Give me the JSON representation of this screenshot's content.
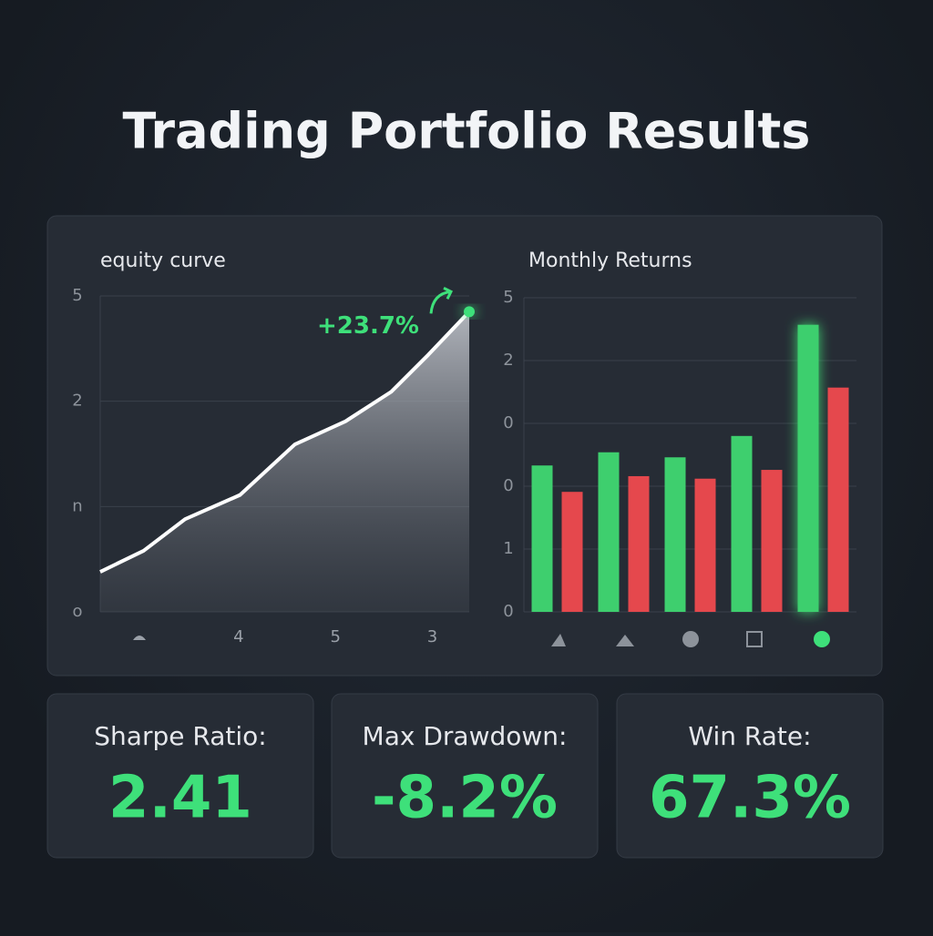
{
  "title": "Trading Portfolio Results",
  "chart_data": [
    {
      "type": "line",
      "title": "equity curve",
      "x": [
        0,
        0.94,
        1.84,
        3.03,
        4.22,
        5.32,
        6.31,
        7.11,
        8
      ],
      "values": [
        0.38,
        0.58,
        0.88,
        1.11,
        1.59,
        1.81,
        2.09,
        2.44,
        2.85
      ],
      "color": "#ffffff",
      "xlim": [
        0,
        8
      ],
      "ylim": [
        0,
        3
      ],
      "yticks": [
        {
          "value": 0,
          "label": "o"
        },
        {
          "value": 1,
          "label": "n"
        },
        2,
        {
          "value": 3,
          "label": "5"
        }
      ],
      "xticks": [
        {
          "value": 3,
          "label": "4"
        },
        {
          "value": 5.1,
          "label": "5"
        },
        {
          "value": 7.2,
          "label": "3"
        }
      ],
      "annotation": "+23.7%",
      "grid": true
    },
    {
      "type": "bar",
      "title": "Monthly Returns",
      "categories": [
        null,
        null,
        null,
        null,
        null
      ],
      "series": [
        {
          "color": "#3ecf6e",
          "values": [
            2.33,
            2.54,
            2.46,
            2.8,
            4.57
          ]
        },
        {
          "color": "#e5484d",
          "values": [
            1.91,
            2.16,
            2.12,
            2.26,
            3.57
          ]
        }
      ],
      "ylim": [
        0,
        5
      ],
      "yticks": [
        0,
        1,
        {
          "value": 2,
          "label": "0"
        },
        {
          "value": 3,
          "label": "0"
        },
        {
          "value": 4,
          "label": "2"
        },
        5
      ],
      "grid": true
    }
  ],
  "stats": [
    {
      "label": "Sharpe Ratio:",
      "value": "2.41"
    },
    {
      "label": "Max Drawdown:",
      "value": "-8.2%"
    },
    {
      "label": "Win Rate:",
      "value": "67.3%"
    }
  ]
}
